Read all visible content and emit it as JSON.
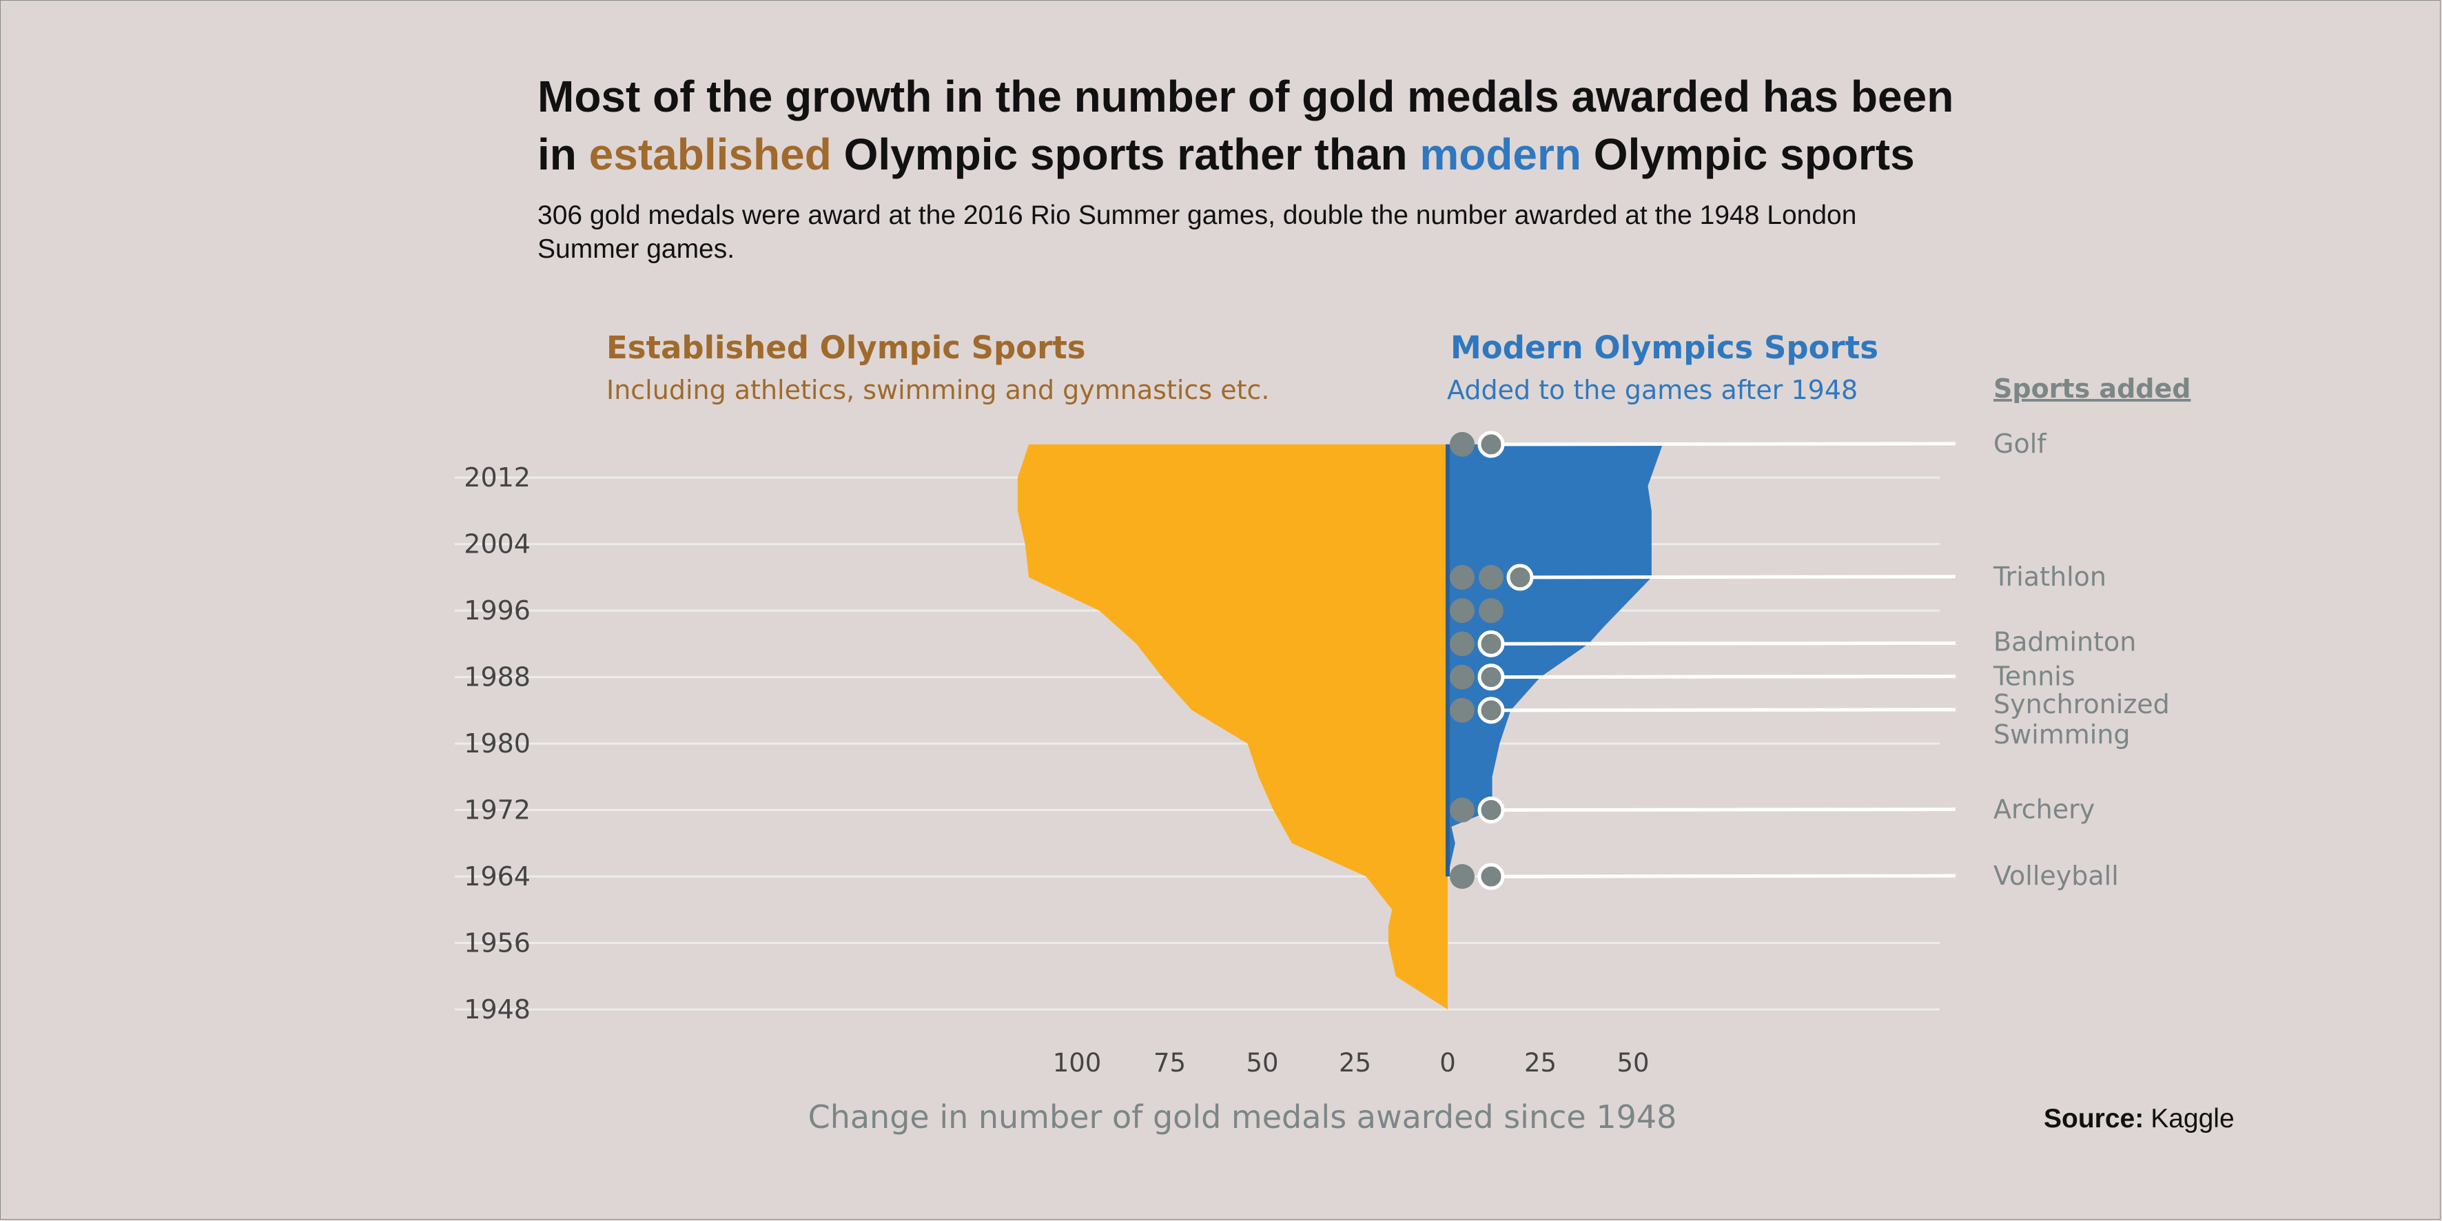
{
  "title": {
    "line1": "Most of the growth in the number of gold medals awarded has been",
    "line2_prefix": "in ",
    "line2_established": "established",
    "line2_middle": " Olympic sports rather than ",
    "line2_modern": "modern",
    "line2_suffix": " Olympic sports"
  },
  "subtitle": {
    "line1": "306 gold medals were award at the 2016 Rio Summer games, double the number awarded at the 1948 London",
    "line2": "Summer games."
  },
  "colors": {
    "established": "#a06a2c",
    "established_fill": "#fbae1c",
    "modern": "#2f78bf",
    "modern_fill": "#2e77bd",
    "marker": "#7a8585",
    "gridline": "#ececec"
  },
  "groups": {
    "established": {
      "title": "Established Olympic Sports",
      "subtitle": "Including athletics, swimming and gymnastics etc."
    },
    "modern": {
      "title": "Modern Olympics Sports",
      "subtitle": "Added to the games after 1948"
    }
  },
  "sports_header": "Sports added",
  "source": {
    "label": "Source:",
    "value": "Kaggle"
  },
  "chart_data": {
    "type": "area",
    "xlabel": "Change in number of gold medals awarded since 1948",
    "ylabel": "",
    "x_ticks": [
      "100",
      "75",
      "50",
      "25",
      "0",
      "25",
      "50"
    ],
    "x_tick_values": [
      -100,
      -75,
      -50,
      -25,
      0,
      25,
      50
    ],
    "y_ticks": [
      "2012",
      "2004",
      "1996",
      "1988",
      "1980",
      "1972",
      "1964",
      "1956",
      "1948"
    ],
    "y_tick_values": [
      2012,
      2004,
      1996,
      1988,
      1980,
      1972,
      1964,
      1956,
      1948
    ],
    "xlim": [
      -120,
      67
    ],
    "ylim": [
      1948,
      2016
    ],
    "grid": true,
    "series": [
      {
        "name": "Established Olympic Sports",
        "side": "left",
        "points": [
          [
            1948,
            0
          ],
          [
            1952,
            14
          ],
          [
            1956,
            16
          ],
          [
            1958,
            16
          ],
          [
            1960,
            15
          ],
          [
            1964,
            22
          ],
          [
            1968,
            42
          ],
          [
            1972,
            47
          ],
          [
            1976,
            51
          ],
          [
            1980,
            54
          ],
          [
            1984,
            69
          ],
          [
            1988,
            77
          ],
          [
            1992,
            84
          ],
          [
            1996,
            94
          ],
          [
            2000,
            113
          ],
          [
            2004,
            114
          ],
          [
            2008,
            116
          ],
          [
            2012,
            116
          ],
          [
            2016,
            113
          ]
        ]
      },
      {
        "name": "Modern Olympics Sports",
        "side": "right",
        "points": [
          [
            1964,
            0
          ],
          [
            1968,
            2
          ],
          [
            1970,
            1
          ],
          [
            1972,
            12
          ],
          [
            1976,
            12
          ],
          [
            1980,
            14
          ],
          [
            1984,
            17
          ],
          [
            1988,
            25
          ],
          [
            1992,
            38
          ],
          [
            1994,
            42
          ],
          [
            2000,
            55
          ],
          [
            2004,
            55
          ],
          [
            2008,
            55
          ],
          [
            2011,
            54
          ],
          [
            2016,
            58
          ]
        ]
      }
    ],
    "sports_added": [
      {
        "sport": "Volleyball",
        "year": 1964,
        "events": 2
      },
      {
        "sport": "Archery",
        "year": 1972,
        "events": 2
      },
      {
        "sport": "Synchronized Swimming",
        "year": 1984,
        "events": 2
      },
      {
        "sport": "Tennis",
        "year": 1988,
        "events": 2
      },
      {
        "sport": "Badminton",
        "year": 1992,
        "events": 2
      },
      {
        "sport": "Triathlon",
        "year": 2000,
        "events": 3
      },
      {
        "sport": "Golf",
        "year": 2016,
        "events": 2
      }
    ],
    "other_markers": [
      {
        "year": 1996,
        "events": 2
      }
    ]
  }
}
